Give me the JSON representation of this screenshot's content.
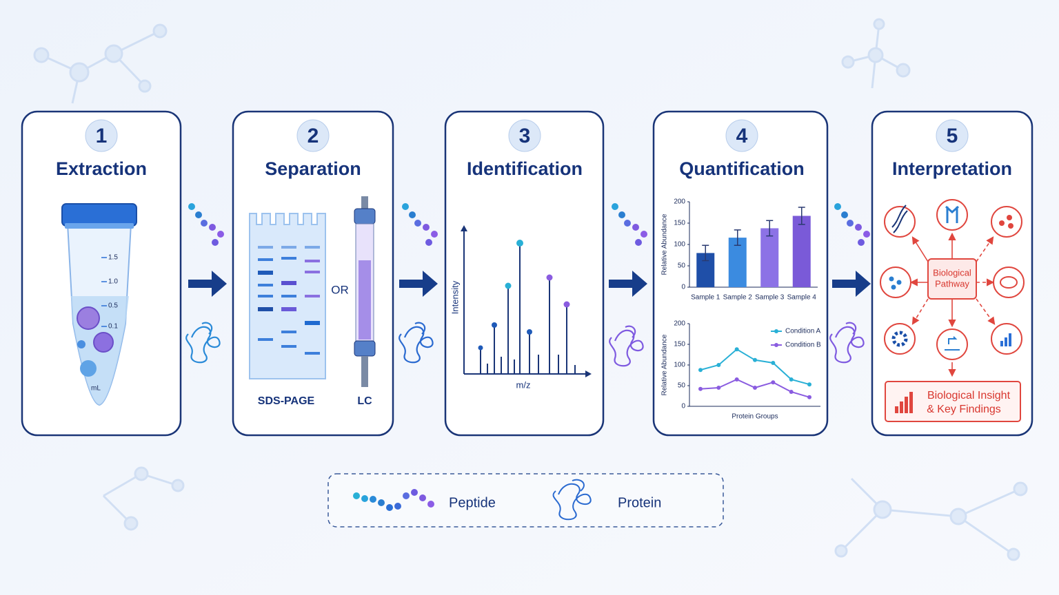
{
  "steps": [
    {
      "number": "1",
      "title": "Extraction"
    },
    {
      "number": "2",
      "title": "Separation"
    },
    {
      "number": "3",
      "title": "Identification"
    },
    {
      "number": "4",
      "title": "Quantification"
    },
    {
      "number": "5",
      "title": "Interpretation"
    }
  ],
  "extraction": {
    "graduations": [
      "1.5",
      "1.0",
      "0.5",
      "0.1"
    ],
    "unit": "mL"
  },
  "separation": {
    "or": "OR",
    "left_label": "SDS-PAGE",
    "right_label": "LC"
  },
  "identification": {
    "y_label": "Intensity",
    "x_label": "m/z"
  },
  "quantification": {
    "bar_chart": {
      "type": "bar",
      "y_label": "Relative Abundance",
      "categories": [
        "Sample 1",
        "Sample 2",
        "Sample 3",
        "Sample 4"
      ],
      "values": [
        80,
        116,
        138,
        167
      ],
      "errors": [
        18,
        18,
        18,
        20
      ],
      "colors": [
        "#1f4fa8",
        "#3b8be0",
        "#8c72e6",
        "#7a5ad8"
      ],
      "ylim": [
        0,
        200
      ],
      "yticks": [
        0,
        50,
        100,
        150,
        200
      ]
    },
    "line_chart": {
      "type": "line",
      "y_label": "Relative Abundance",
      "x_label": "Protein Groups",
      "categories": [
        null,
        null,
        null,
        null,
        null,
        null,
        null
      ],
      "series": [
        {
          "name": "Condition A",
          "color": "#29b0d6",
          "values": [
            88,
            100,
            138,
            112,
            105,
            65,
            53
          ]
        },
        {
          "name": "Condition B",
          "color": "#8a5ce0",
          "values": [
            42,
            45,
            65,
            45,
            58,
            35,
            22
          ]
        }
      ],
      "ylim": [
        0,
        200
      ],
      "yticks": [
        0,
        50,
        100,
        150,
        200
      ]
    }
  },
  "interpretation": {
    "center": [
      "Biological",
      "Pathway"
    ],
    "result": [
      "Biological Insight",
      "& Key Findings"
    ]
  },
  "legend": {
    "peptide": "Peptide",
    "protein": "Protein"
  }
}
